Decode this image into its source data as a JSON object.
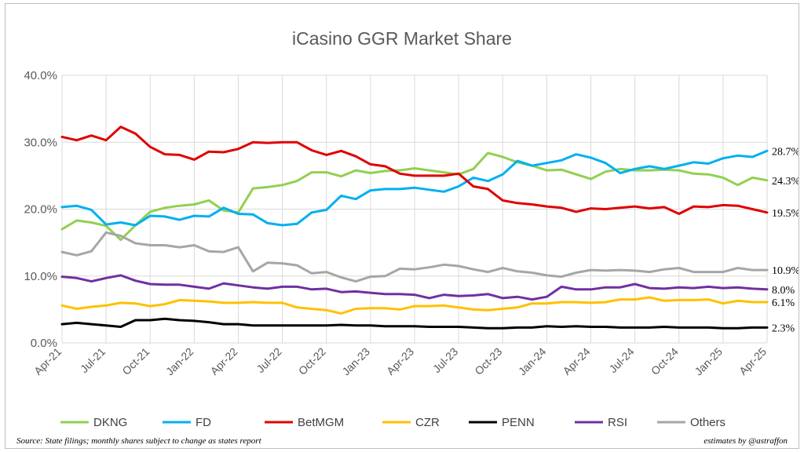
{
  "footer": {
    "source": "Source: State filings; monthly shares subject to change as states report",
    "credit": "estimates by @astraffon"
  },
  "chart_data": {
    "type": "line",
    "title": "iCasino GGR Market Share",
    "xlabel": "",
    "ylabel": "",
    "ylim": [
      0,
      40
    ],
    "y_ticks": [
      "0.0%",
      "10.0%",
      "20.0%",
      "30.0%",
      "40.0%"
    ],
    "x_tick_labels": [
      "Apr-21",
      "Jul-21",
      "Oct-21",
      "Jan-22",
      "Apr-22",
      "Jul-22",
      "Oct-22",
      "Jan-23",
      "Apr-23",
      "Jul-23",
      "Oct-23",
      "Jan-24",
      "Apr-24",
      "Jul-24",
      "Oct-24",
      "Jan-25",
      "Apr-25"
    ],
    "grid": "horizontal and vertical",
    "legend": "bottom",
    "x": [
      "Apr-21",
      "May-21",
      "Jun-21",
      "Jul-21",
      "Aug-21",
      "Sep-21",
      "Oct-21",
      "Nov-21",
      "Dec-21",
      "Jan-22",
      "Feb-22",
      "Mar-22",
      "Apr-22",
      "May-22",
      "Jun-22",
      "Jul-22",
      "Aug-22",
      "Sep-22",
      "Oct-22",
      "Nov-22",
      "Dec-22",
      "Jan-23",
      "Feb-23",
      "Mar-23",
      "Apr-23",
      "May-23",
      "Jun-23",
      "Jul-23",
      "Aug-23",
      "Sep-23",
      "Oct-23",
      "Nov-23",
      "Dec-23",
      "Jan-24",
      "Feb-24",
      "Mar-24",
      "Apr-24",
      "May-24",
      "Jun-24",
      "Jul-24",
      "Aug-24",
      "Sep-24",
      "Oct-24",
      "Nov-24",
      "Dec-24",
      "Jan-25",
      "Feb-25",
      "Mar-25",
      "Apr-25"
    ],
    "series": [
      {
        "name": "DKNG",
        "color": "#92d050",
        "end_label": "24.3%",
        "values": [
          17.0,
          18.3,
          18.0,
          17.5,
          15.4,
          17.6,
          19.6,
          20.2,
          20.5,
          20.7,
          21.3,
          19.8,
          19.5,
          23.1,
          23.3,
          23.6,
          24.2,
          25.5,
          25.5,
          24.9,
          25.8,
          25.4,
          25.7,
          25.8,
          26.1,
          25.8,
          25.5,
          25.2,
          26.0,
          28.4,
          27.8,
          27.0,
          26.5,
          25.8,
          25.9,
          25.2,
          24.5,
          25.6,
          26.0,
          25.8,
          25.8,
          25.9,
          25.8,
          25.3,
          25.2,
          24.7,
          23.6,
          24.7,
          24.3
        ]
      },
      {
        "name": "FD",
        "color": "#00b0f0",
        "end_label": "28.7%",
        "values": [
          20.3,
          20.5,
          19.9,
          17.7,
          18.0,
          17.6,
          19.0,
          18.9,
          18.4,
          19.0,
          18.9,
          20.2,
          19.3,
          19.2,
          17.9,
          17.6,
          17.8,
          19.5,
          19.9,
          22.0,
          21.5,
          22.8,
          23.0,
          23.0,
          23.2,
          22.9,
          22.6,
          23.4,
          24.7,
          24.2,
          25.2,
          27.2,
          26.5,
          26.9,
          27.3,
          28.2,
          27.7,
          26.9,
          25.4,
          26.0,
          26.4,
          26.0,
          26.5,
          27.0,
          26.8,
          27.6,
          28.0,
          27.8,
          28.7
        ]
      },
      {
        "name": "BetMGM",
        "color": "#e00000",
        "end_label": "19.5%",
        "values": [
          30.8,
          30.3,
          31.0,
          30.3,
          32.3,
          31.3,
          29.3,
          28.2,
          28.1,
          27.4,
          28.6,
          28.5,
          29.0,
          30.0,
          29.9,
          30.0,
          30.0,
          28.8,
          28.1,
          28.7,
          27.9,
          26.7,
          26.4,
          25.3,
          25.0,
          25.0,
          25.0,
          25.3,
          23.4,
          23.0,
          21.3,
          20.9,
          20.7,
          20.4,
          20.2,
          19.6,
          20.1,
          20.0,
          20.2,
          20.4,
          20.1,
          20.3,
          19.3,
          20.4,
          20.3,
          20.6,
          20.5,
          20.0,
          19.5
        ]
      },
      {
        "name": "CZR",
        "color": "#ffc000",
        "end_label": "6.1%",
        "values": [
          5.6,
          5.1,
          5.4,
          5.6,
          6.0,
          5.9,
          5.5,
          5.8,
          6.4,
          6.3,
          6.2,
          6.0,
          6.0,
          6.1,
          6.0,
          6.0,
          5.3,
          5.1,
          4.9,
          4.4,
          5.1,
          5.2,
          5.2,
          5.0,
          5.5,
          5.5,
          5.6,
          5.3,
          5.0,
          4.9,
          5.1,
          5.3,
          5.9,
          5.9,
          6.1,
          6.1,
          6.0,
          6.1,
          6.5,
          6.5,
          6.8,
          6.3,
          6.4,
          6.4,
          6.5,
          5.9,
          6.3,
          6.1,
          6.1
        ]
      },
      {
        "name": "PENN",
        "color": "#000000",
        "end_label": "2.3%",
        "values": [
          2.8,
          3.0,
          2.8,
          2.6,
          2.4,
          3.4,
          3.4,
          3.6,
          3.4,
          3.3,
          3.1,
          2.8,
          2.8,
          2.6,
          2.6,
          2.6,
          2.6,
          2.6,
          2.6,
          2.7,
          2.6,
          2.6,
          2.5,
          2.5,
          2.5,
          2.4,
          2.4,
          2.4,
          2.3,
          2.2,
          2.2,
          2.3,
          2.3,
          2.5,
          2.4,
          2.5,
          2.4,
          2.4,
          2.3,
          2.3,
          2.3,
          2.4,
          2.3,
          2.3,
          2.3,
          2.2,
          2.2,
          2.3,
          2.3
        ]
      },
      {
        "name": "RSI",
        "color": "#7030a0",
        "end_label": "8.0%",
        "values": [
          9.9,
          9.7,
          9.2,
          9.7,
          10.1,
          9.3,
          8.8,
          8.7,
          8.7,
          8.4,
          8.1,
          8.9,
          8.6,
          8.3,
          8.1,
          8.4,
          8.4,
          8.0,
          8.1,
          7.6,
          7.7,
          7.5,
          7.3,
          7.3,
          7.2,
          6.7,
          7.2,
          7.0,
          7.1,
          7.3,
          6.7,
          6.9,
          6.5,
          6.9,
          8.4,
          8.0,
          8.0,
          8.3,
          8.3,
          8.8,
          8.2,
          8.1,
          8.3,
          8.2,
          8.4,
          8.2,
          8.3,
          8.1,
          8.0
        ]
      },
      {
        "name": "Others",
        "color": "#a6a6a6",
        "end_label": "10.9%",
        "values": [
          13.6,
          13.1,
          13.7,
          16.5,
          16.0,
          14.9,
          14.6,
          14.6,
          14.3,
          14.6,
          13.7,
          13.6,
          14.3,
          10.7,
          12.0,
          11.9,
          11.6,
          10.4,
          10.6,
          9.8,
          9.2,
          9.9,
          10.0,
          11.1,
          11.0,
          11.3,
          11.7,
          11.5,
          11.0,
          10.6,
          11.2,
          10.7,
          10.5,
          10.1,
          9.9,
          10.5,
          10.9,
          10.8,
          10.9,
          10.8,
          10.6,
          11.0,
          11.2,
          10.6,
          10.6,
          10.6,
          11.2,
          10.9,
          10.9
        ]
      }
    ]
  }
}
